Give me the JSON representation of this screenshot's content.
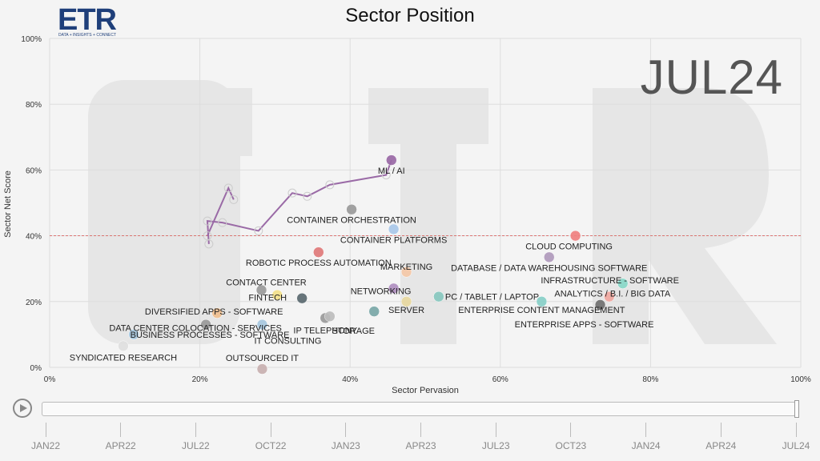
{
  "header": {
    "logo_text": "ETR",
    "logo_tagline": "DATA + INSIGHTS + CONNECT",
    "title": "Sector Position",
    "period_watermark": "JUL24"
  },
  "timeline": {
    "labels": [
      "JAN22",
      "APR22",
      "JUL22",
      "OCT22",
      "JAN23",
      "APR23",
      "JUL23",
      "OCT23",
      "JAN24",
      "APR24",
      "JUL24"
    ],
    "position": 1.0
  },
  "chart_data": {
    "type": "scatter",
    "title": "Sector Position",
    "xlabel": "Sector Pervasion",
    "ylabel": "Sector Net Score",
    "xlim": [
      0,
      100
    ],
    "ylim": [
      0,
      100
    ],
    "xticks": [
      "0%",
      "20%",
      "40%",
      "60%",
      "80%",
      "100%"
    ],
    "yticks": [
      "0%",
      "20%",
      "40%",
      "60%",
      "80%",
      "100%"
    ],
    "reference_line_y": 40,
    "points": [
      {
        "label": "ML / AI",
        "x": 45.5,
        "y": 63,
        "color": "#9a6aa6"
      },
      {
        "label": "CONTAINER ORCHESTRATION",
        "x": 40.2,
        "y": 48,
        "color": "#9a9a9a"
      },
      {
        "label": "CONTAINER PLATFORMS",
        "x": 45.8,
        "y": 42,
        "color": "#aac8ea"
      },
      {
        "label": "ROBOTIC PROCESS AUTOMATION",
        "x": 35.8,
        "y": 35,
        "color": "#e07a7a"
      },
      {
        "label": "CLOUD COMPUTING",
        "x": 70.0,
        "y": 40,
        "color": "#f08080"
      },
      {
        "label": "DATABASE / DATA WAREHOUSING SOFTWARE",
        "x": 66.5,
        "y": 33.5,
        "color": "#b09abc"
      },
      {
        "label": "CONTACT CENTER",
        "x": 28.2,
        "y": 23.5,
        "color": "#9a9a9a"
      },
      {
        "label": "FINTECH",
        "x": 30.3,
        "y": 22,
        "color": "#f2e08a"
      },
      {
        "label": "MARKETING",
        "x": 47.5,
        "y": 29,
        "color": "#f5c8a8"
      },
      {
        "label": "INFRASTRUCTURE - SOFTWARE",
        "x": 76.3,
        "y": 25.5,
        "color": "#88d8c8"
      },
      {
        "label": "ANALYTICS / B.I. / BIG DATA",
        "x": 74.5,
        "y": 21.5,
        "color": "#f0a8a0"
      },
      {
        "label": "NETWORKING",
        "x": 45.8,
        "y": 24,
        "color": "#b090c0"
      },
      {
        "label": "PC / TABLET / LAPTOP",
        "x": 51.8,
        "y": 21.5,
        "color": "#88c8c0"
      },
      {
        "label": "ENTERPRISE CONTENT MANAGEMENT",
        "x": 65.5,
        "y": 20,
        "color": "#88d0c8"
      },
      {
        "label": "ENTERPRISE APPS - SOFTWARE",
        "x": 73.3,
        "y": 19,
        "color": "#707070"
      },
      {
        "label": "SERVER",
        "x": 47.5,
        "y": 20,
        "color": "#e8d8a0"
      },
      {
        "label": "STORAGE",
        "x": 43.2,
        "y": 17,
        "color": "#7aa8a8"
      },
      {
        "label": "IP TELEPHONY",
        "x": 36.7,
        "y": 15,
        "color": "#9a9a9a"
      },
      {
        "label": "DIVERSIFIED APPS - SOFTWARE",
        "x": 22.3,
        "y": 16.5,
        "color": "#f0c090"
      },
      {
        "label": "DATA CENTER COLOCATION - SERVICES",
        "x": 20.8,
        "y": 13,
        "color": "#9a9a9a"
      },
      {
        "label": "BUSINESS PROCESSES - SOFTWARE",
        "x": 11.2,
        "y": 10,
        "color": "#a8c8e0"
      },
      {
        "label": "IT CONSULTING",
        "x": 28.3,
        "y": 13,
        "color": "#a8c8e0"
      },
      {
        "label": "SYNDICATED RESEARCH",
        "x": 9.8,
        "y": 6.5,
        "color": "#e0e0e0"
      },
      {
        "label": "OUTSOURCED IT",
        "x": 28.3,
        "y": -0.5,
        "color": "#c8b0b0"
      },
      {
        "label": "",
        "x": 33.6,
        "y": 21,
        "color": "#5a6a70"
      },
      {
        "label": "",
        "x": 37.3,
        "y": 15.5,
        "color": "#bdbdbd"
      }
    ],
    "trail": {
      "series": "ML / AI",
      "color": "#9a6aa6",
      "points": [
        {
          "x": 21.2,
          "y": 37.5
        },
        {
          "x": 21.0,
          "y": 44.5
        },
        {
          "x": 23.0,
          "y": 44.0
        },
        {
          "x": 27.8,
          "y": 41.5
        },
        {
          "x": 32.3,
          "y": 53.0
        },
        {
          "x": 34.3,
          "y": 52.0
        },
        {
          "x": 37.3,
          "y": 55.5
        },
        {
          "x": 44.8,
          "y": 58.5
        },
        {
          "x": 45.5,
          "y": 63.0
        }
      ],
      "branch": [
        {
          "x": 21.0,
          "y": 40.0
        },
        {
          "x": 23.8,
          "y": 54.5
        },
        {
          "x": 24.5,
          "y": 51.0
        }
      ]
    }
  }
}
